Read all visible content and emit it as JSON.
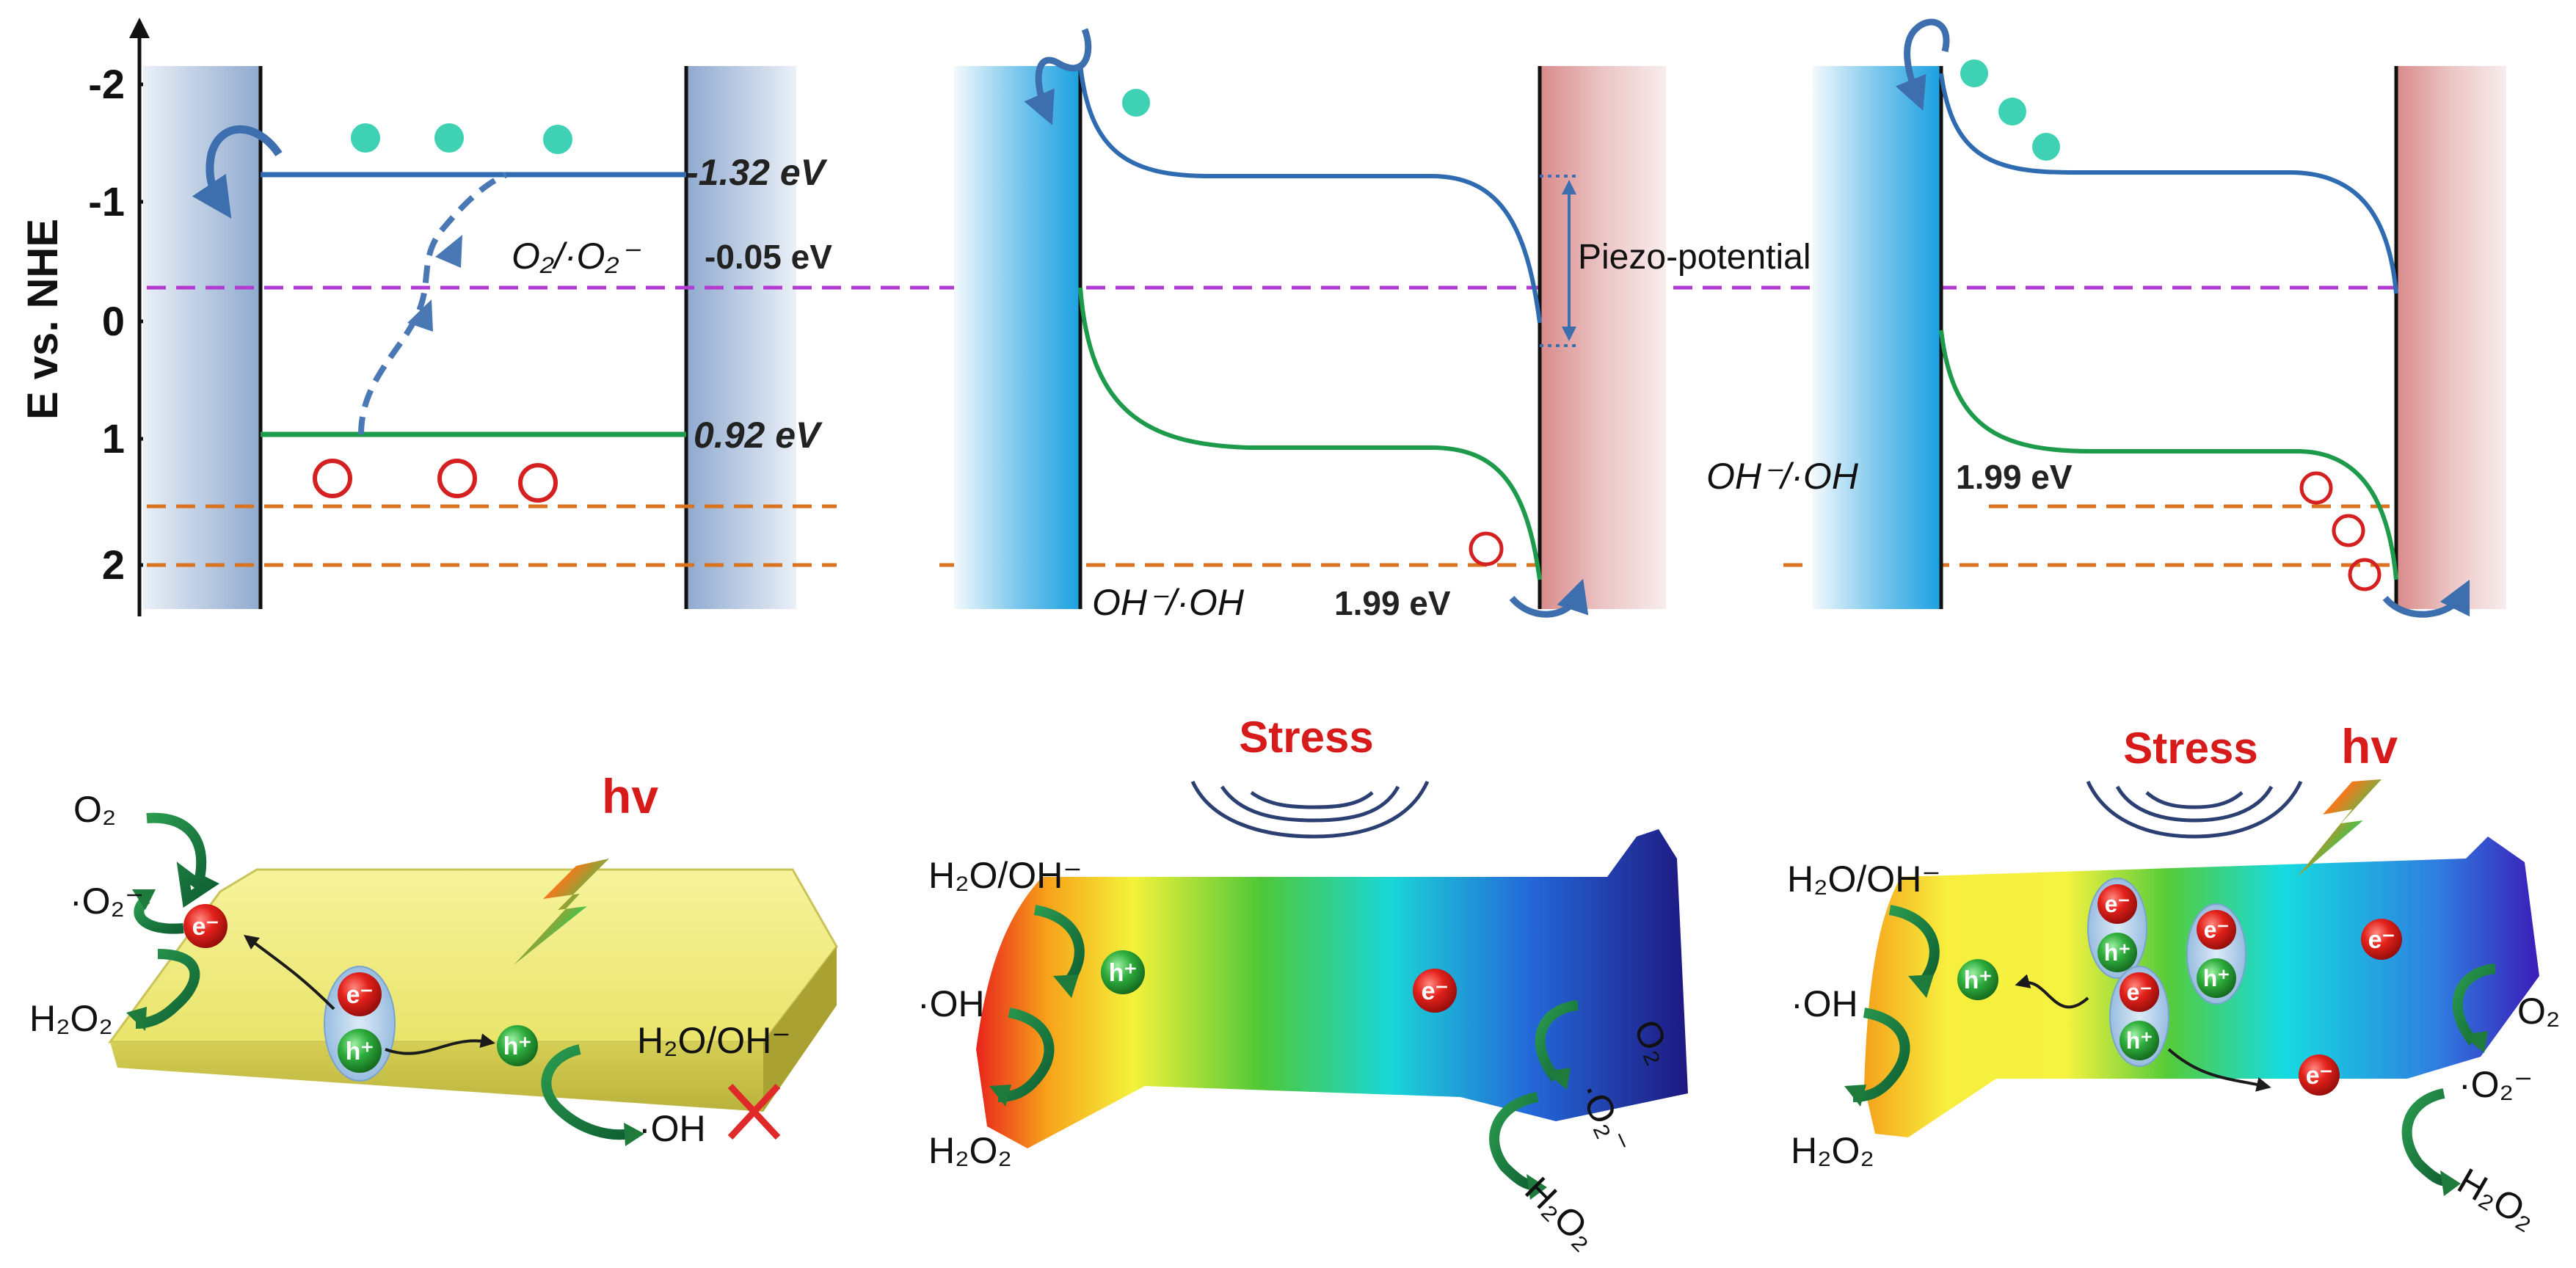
{
  "axis": {
    "title": "E vs. NHE",
    "ticks": [
      "-2",
      "-1",
      "0",
      "1",
      "2"
    ]
  },
  "panel1": {
    "cb_label": "-1.32 eV",
    "vb_label": "0.92 eV",
    "o2_redox": "O₂/·O₂⁻",
    "o2_value": "-0.05 eV"
  },
  "panel2": {
    "piezo_label": "Piezo-potential",
    "oh_redox": "OH⁻/·OH",
    "oh_value": "1.99 eV"
  },
  "panel3": {
    "oh_redox": "OH⁻/·OH",
    "oh_value": "1.99 eV"
  },
  "bottom1": {
    "hv": "hv",
    "o2": "O₂",
    "o2_radical": "·O₂⁻",
    "h2o2": "H₂O₂",
    "h2o_oh": "H₂O/OH⁻",
    "oh_radical": "·OH"
  },
  "bottom2": {
    "stress": "Stress",
    "h2o_oh": "H₂O/OH⁻",
    "oh_radical": "·OH",
    "h2o2_left": "H₂O₂",
    "o2": "O₂",
    "o2_radical": "·O₂⁻",
    "h2o2_right": "H₂O₂"
  },
  "bottom3": {
    "stress": "Stress",
    "hv": "hv",
    "h2o_oh": "H₂O/OH⁻",
    "oh_radical": "·OH",
    "h2o2_left": "H₂O₂",
    "o2": "O₂",
    "o2_radical": "·O₂⁻",
    "h2o2_right": "H₂O₂"
  },
  "carriers": {
    "electron": "e⁻",
    "hole": "h⁺"
  },
  "colors": {
    "conduction_band": "#2f6bb0",
    "valence_band": "#1e9a4b",
    "o2_redox_line": "#b23ccf",
    "oh_redox_line": "#d9731f",
    "electron_dot": "#3ed1b3",
    "hole_circle": "#d42020"
  }
}
